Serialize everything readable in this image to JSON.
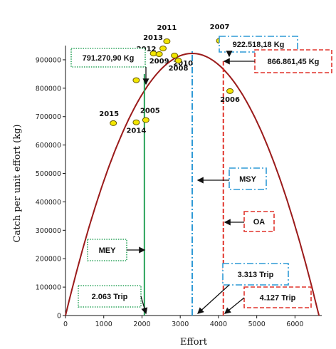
{
  "chart_data": {
    "type": "scatter",
    "xlabel": "Effort",
    "ylabel": "Catch per unit effort (kg)",
    "xlim": [
      0,
      6700
    ],
    "ylim": [
      0,
      950000
    ],
    "xticks": [
      "0",
      "1000",
      "2000",
      "3000",
      "4000",
      "5000",
      "6000"
    ],
    "yticks": [
      "0",
      "100000",
      "200000",
      "300000",
      "400000",
      "500000",
      "600000",
      "700000",
      "800000",
      "900000"
    ],
    "curve": {
      "shape": "parabola",
      "x_start": 0,
      "x_end": 6627,
      "x_peak": 3313,
      "y_peak": 922518,
      "color": "#9b1b1b"
    },
    "points": [
      {
        "label": "2011",
        "x": 2650,
        "y": 965000
      },
      {
        "label": "2007",
        "x": 4030,
        "y": 967000
      },
      {
        "label": "2013",
        "x": 2550,
        "y": 940000
      },
      {
        "label": "2012",
        "x": 2300,
        "y": 922000
      },
      {
        "label": "2010",
        "x": 2850,
        "y": 915000
      },
      {
        "label": "2009",
        "x": 2450,
        "y": 920000
      },
      {
        "label": "2008",
        "x": 2950,
        "y": 897000
      },
      {
        "label": "2006",
        "x": 4300,
        "y": 790000
      },
      {
        "label": "2015",
        "x": 1250,
        "y": 677000
      },
      {
        "label": "2014",
        "x": 1850,
        "y": 680000
      },
      {
        "label": "2005",
        "x": 2100,
        "y": 688000
      },
      {
        "label": "",
        "x": 1850,
        "y": 828000
      }
    ],
    "point_color": "#f2e600",
    "reference_lines": [
      {
        "name": "MEY",
        "x": 2063,
        "color": "#2aa35a",
        "style": "solid"
      },
      {
        "name": "MSY",
        "x": 3313,
        "color": "#2f9ad6",
        "style": "dashdot"
      },
      {
        "name": "OA",
        "x": 4127,
        "color": "#e0342c",
        "style": "dashed"
      }
    ],
    "annotations": [
      {
        "text": "791.270,90 Kg",
        "color": "#2aa35a",
        "style": "dotted"
      },
      {
        "text": "922.518,18 Kg",
        "color": "#2f9ad6",
        "style": "dashdot"
      },
      {
        "text": "866.861,45 Kg",
        "color": "#e0342c",
        "style": "dashed"
      },
      {
        "text": "MSY",
        "color": "#2f9ad6",
        "style": "dashdot"
      },
      {
        "text": "OA",
        "color": "#e0342c",
        "style": "dashed"
      },
      {
        "text": "MEY",
        "color": "#2aa35a",
        "style": "dotted"
      },
      {
        "text": "3.313 Trip",
        "color": "#2f9ad6",
        "style": "dashdot"
      },
      {
        "text": "2.063 Trip",
        "color": "#2aa35a",
        "style": "dotted"
      },
      {
        "text": "4.127 Trip",
        "color": "#e0342c",
        "style": "dashed"
      }
    ]
  }
}
